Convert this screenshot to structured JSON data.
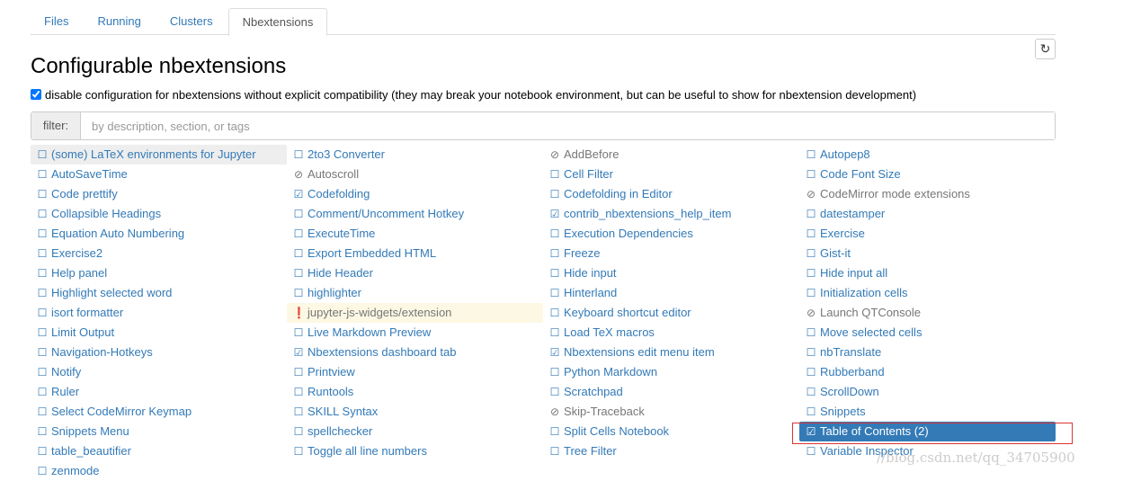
{
  "tabs": [
    "Files",
    "Running",
    "Clusters",
    "Nbextensions"
  ],
  "active_tab": 3,
  "refresh_icon": "refresh-icon",
  "title": "Configurable nbextensions",
  "compat_label": "disable configuration for nbextensions without explicit compatibility (they may break your notebook environment, but can be useful to show for nbextension development)",
  "compat_checked": true,
  "filter": {
    "label": "filter:",
    "placeholder": "by description, section, or tags",
    "value": ""
  },
  "columns": [
    [
      {
        "name": "(some) LaTeX environments for Jupyter",
        "state": "unchecked",
        "hl": true
      },
      {
        "name": "AutoSaveTime",
        "state": "unchecked"
      },
      {
        "name": "Code prettify",
        "state": "unchecked"
      },
      {
        "name": "Collapsible Headings",
        "state": "unchecked"
      },
      {
        "name": "Equation Auto Numbering",
        "state": "unchecked"
      },
      {
        "name": "Exercise2",
        "state": "unchecked"
      },
      {
        "name": "Help panel",
        "state": "unchecked"
      },
      {
        "name": "Highlight selected word",
        "state": "unchecked"
      },
      {
        "name": "isort formatter",
        "state": "unchecked"
      },
      {
        "name": "Limit Output",
        "state": "unchecked"
      },
      {
        "name": "Navigation-Hotkeys",
        "state": "unchecked"
      },
      {
        "name": "Notify",
        "state": "unchecked"
      },
      {
        "name": "Ruler",
        "state": "unchecked"
      },
      {
        "name": "Select CodeMirror Keymap",
        "state": "unchecked"
      },
      {
        "name": "Snippets Menu",
        "state": "unchecked"
      },
      {
        "name": "table_beautifier",
        "state": "unchecked"
      },
      {
        "name": "zenmode",
        "state": "unchecked"
      }
    ],
    [
      {
        "name": "2to3 Converter",
        "state": "unchecked"
      },
      {
        "name": "Autoscroll",
        "state": "disabled"
      },
      {
        "name": "Codefolding",
        "state": "checked"
      },
      {
        "name": "Comment/Uncomment Hotkey",
        "state": "unchecked"
      },
      {
        "name": "ExecuteTime",
        "state": "unchecked"
      },
      {
        "name": "Export Embedded HTML",
        "state": "unchecked"
      },
      {
        "name": "Hide Header",
        "state": "unchecked"
      },
      {
        "name": "highlighter",
        "state": "unchecked"
      },
      {
        "name": "jupyter-js-widgets/extension",
        "state": "warning"
      },
      {
        "name": "Live Markdown Preview",
        "state": "unchecked"
      },
      {
        "name": "Nbextensions dashboard tab",
        "state": "checked"
      },
      {
        "name": "Printview",
        "state": "unchecked"
      },
      {
        "name": "Runtools",
        "state": "unchecked"
      },
      {
        "name": "SKILL Syntax",
        "state": "unchecked"
      },
      {
        "name": "spellchecker",
        "state": "unchecked"
      },
      {
        "name": "Toggle all line numbers",
        "state": "unchecked"
      }
    ],
    [
      {
        "name": "AddBefore",
        "state": "disabled"
      },
      {
        "name": "Cell Filter",
        "state": "unchecked"
      },
      {
        "name": "Codefolding in Editor",
        "state": "unchecked"
      },
      {
        "name": "contrib_nbextensions_help_item",
        "state": "checked"
      },
      {
        "name": "Execution Dependencies",
        "state": "unchecked"
      },
      {
        "name": "Freeze",
        "state": "unchecked"
      },
      {
        "name": "Hide input",
        "state": "unchecked"
      },
      {
        "name": "Hinterland",
        "state": "unchecked"
      },
      {
        "name": "Keyboard shortcut editor",
        "state": "unchecked"
      },
      {
        "name": "Load TeX macros",
        "state": "unchecked"
      },
      {
        "name": "Nbextensions edit menu item",
        "state": "checked"
      },
      {
        "name": "Python Markdown",
        "state": "unchecked"
      },
      {
        "name": "Scratchpad",
        "state": "unchecked"
      },
      {
        "name": "Skip-Traceback",
        "state": "disabled"
      },
      {
        "name": "Split Cells Notebook",
        "state": "unchecked"
      },
      {
        "name": "Tree Filter",
        "state": "unchecked"
      }
    ],
    [
      {
        "name": "Autopep8",
        "state": "unchecked"
      },
      {
        "name": "Code Font Size",
        "state": "unchecked"
      },
      {
        "name": "CodeMirror mode extensions",
        "state": "disabled"
      },
      {
        "name": "datestamper",
        "state": "unchecked"
      },
      {
        "name": "Exercise",
        "state": "unchecked"
      },
      {
        "name": "Gist-it",
        "state": "unchecked"
      },
      {
        "name": "Hide input all",
        "state": "unchecked"
      },
      {
        "name": "Initialization cells",
        "state": "unchecked"
      },
      {
        "name": "Launch QTConsole",
        "state": "disabled"
      },
      {
        "name": "Move selected cells",
        "state": "unchecked"
      },
      {
        "name": "nbTranslate",
        "state": "unchecked"
      },
      {
        "name": "Rubberband",
        "state": "unchecked"
      },
      {
        "name": "ScrollDown",
        "state": "unchecked"
      },
      {
        "name": "Snippets",
        "state": "unchecked"
      },
      {
        "name": "Table of Contents (2)",
        "state": "checked",
        "selected": true
      },
      {
        "name": "Variable Inspector",
        "state": "unchecked"
      }
    ]
  ],
  "accent": "#337ab7",
  "watermark": "//blog.csdn.net/qq_34705900"
}
